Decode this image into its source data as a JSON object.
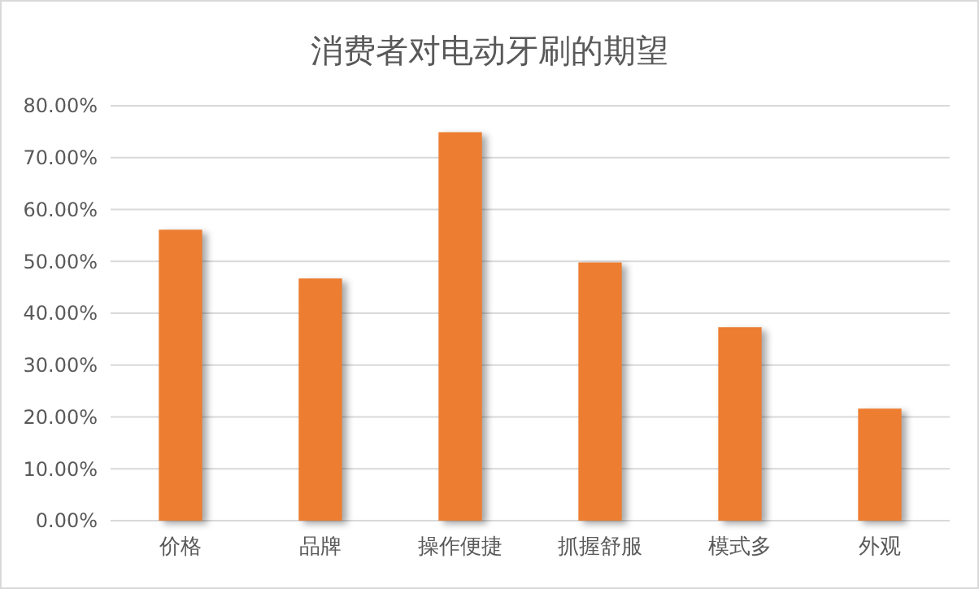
{
  "chart_data": {
    "type": "bar",
    "title": "消费者对电动牙刷的期望",
    "categories": [
      "价格",
      "品牌",
      "操作便捷",
      "抓握舒服",
      "模式多",
      "外观"
    ],
    "values": [
      56.1,
      46.7,
      74.9,
      49.8,
      37.3,
      21.6
    ],
    "color": "#ed7d31",
    "ylim": [
      0,
      80
    ],
    "yticks": [
      {
        "value": 0,
        "label": "0.00%"
      },
      {
        "value": 10,
        "label": "10.00%"
      },
      {
        "value": 20,
        "label": "20.00%"
      },
      {
        "value": 30,
        "label": "30.00%"
      },
      {
        "value": 40,
        "label": "40.00%"
      },
      {
        "value": 50,
        "label": "50.00%"
      },
      {
        "value": 60,
        "label": "60.00%"
      },
      {
        "value": 70,
        "label": "70.00%"
      },
      {
        "value": 80,
        "label": "80.00%"
      }
    ],
    "grid": "y"
  }
}
